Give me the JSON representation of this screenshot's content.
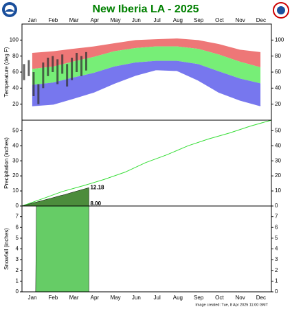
{
  "footer": "Image created: Tue, 8 Apr 2025 11:00 GMT",
  "chart_data": [
    {
      "type": "band",
      "title": "New Iberia LA - 2025",
      "ylabel": "Temperature (deg F)",
      "categories": [
        "Jan",
        "Feb",
        "Mar",
        "Apr",
        "May",
        "Jun",
        "Jul",
        "Aug",
        "Sep",
        "Oct",
        "Nov",
        "Dec"
      ],
      "ylim": [
        0,
        120
      ],
      "yticks": [
        20,
        40,
        60,
        80,
        100
      ],
      "band_x": [
        15,
        46,
        74,
        105,
        135,
        166,
        196,
        227,
        258,
        288,
        319,
        349
      ],
      "series": [
        {
          "color": "#ee7777",
          "values": [
            84,
            86,
            89,
            92,
            96,
            100,
            101,
            102,
            100,
            95,
            88,
            85
          ]
        },
        {
          "color": "#77ee77",
          "values": [
            64,
            67,
            73,
            79,
            86,
            90,
            92,
            92,
            89,
            82,
            73,
            66
          ]
        },
        {
          "color": "#7777ee",
          "values": [
            44,
            47,
            53,
            59,
            67,
            72,
            74,
            74,
            70,
            61,
            52,
            46
          ]
        },
        {
          "color": "#7777ee",
          "values": [
            18,
            20,
            27,
            35,
            46,
            56,
            63,
            62,
            50,
            35,
            25,
            18
          ]
        }
      ],
      "observed": {
        "color": "#333333",
        "x": [
          3,
          10,
          17,
          24,
          31,
          38,
          45,
          52,
          59,
          66,
          73,
          80,
          87,
          94
        ],
        "high": [
          70,
          75,
          60,
          45,
          72,
          78,
          80,
          76,
          82,
          70,
          78,
          84,
          80,
          85
        ],
        "low": [
          50,
          55,
          30,
          20,
          40,
          55,
          60,
          45,
          58,
          42,
          50,
          60,
          55,
          62
        ]
      }
    },
    {
      "type": "line",
      "ylabel": "Precipitation (inches)",
      "ylim": [
        0,
        57
      ],
      "yticks": [
        0,
        10,
        20,
        30,
        40,
        50
      ],
      "series": [
        {
          "color": "#33dd33",
          "x": [
            0,
            31,
            59,
            90,
            120,
            151,
            181,
            212,
            243,
            273,
            304,
            334,
            365
          ],
          "values": [
            0,
            5,
            9.6,
            13.5,
            17.6,
            22.5,
            28.8,
            34,
            40,
            44.5,
            48.5,
            53,
            57
          ]
        },
        {
          "color": "#4c8c3c",
          "x": [
            0,
            7,
            14,
            21,
            28,
            35,
            42,
            49,
            56,
            63,
            70,
            77,
            84,
            91,
            98
          ],
          "values": [
            0,
            0.8,
            1.8,
            2.6,
            3.4,
            4.3,
            5.1,
            6.0,
            6.9,
            7.6,
            8.6,
            9.5,
            10.4,
            11.3,
            12.18
          ]
        }
      ]
    },
    {
      "type": "area",
      "ylabel": "Snowfall (inches)",
      "ylim": [
        0,
        8
      ],
      "yticks": [
        0,
        1,
        2,
        3,
        4,
        5,
        6,
        7
      ],
      "series": [
        {
          "color": "#66cc66",
          "x": [
            0,
            20,
            21,
            98
          ],
          "values": [
            0,
            0,
            8,
            8
          ],
          "value_labels": [
            null,
            null,
            null,
            "8.00"
          ]
        }
      ]
    }
  ]
}
